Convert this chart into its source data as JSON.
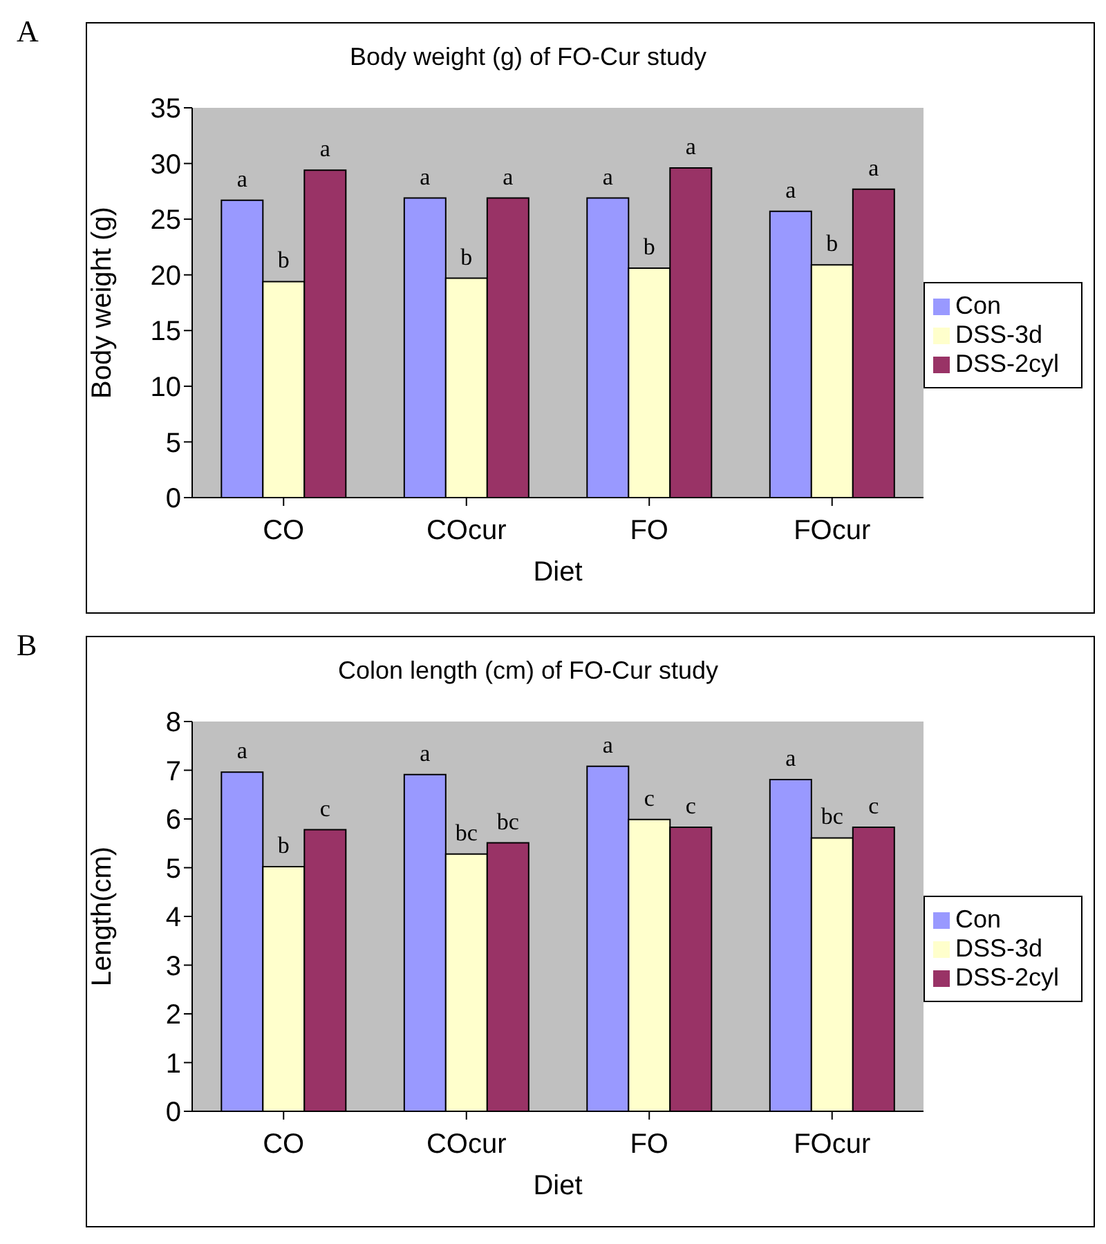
{
  "chart_data": [
    {
      "type": "bar",
      "title": "Body weight (g) of FO-Cur study",
      "xlabel": "Diet",
      "ylabel": "Body weight (g)",
      "annotations": [
        "A"
      ],
      "categories": [
        "CO",
        "COcur",
        "FO",
        "FOcur"
      ],
      "series": [
        {
          "name": "Con",
          "color": "#9999ff",
          "values": [
            26.7,
            26.9,
            26.9,
            25.7
          ],
          "value_labels": [
            "a",
            "a",
            "a",
            "a"
          ]
        },
        {
          "name": "DSS-3d",
          "color": "#ffffcc",
          "values": [
            19.4,
            19.7,
            20.6,
            20.9
          ],
          "value_labels": [
            "b",
            "b",
            "b",
            "b"
          ]
        },
        {
          "name": "DSS-2cyl",
          "color": "#993366",
          "values": [
            29.4,
            26.9,
            29.6,
            27.7
          ],
          "value_labels": [
            "a",
            "a",
            "a",
            "a"
          ]
        }
      ],
      "ylim": [
        0,
        35
      ],
      "yticks": [
        0,
        5,
        10,
        15,
        20,
        25,
        30,
        35
      ],
      "grid": false,
      "legend": "right"
    },
    {
      "type": "bar",
      "title": "Colon length (cm) of FO-Cur study",
      "xlabel": "Diet",
      "ylabel": "Length(cm)",
      "annotations": [
        "B"
      ],
      "categories": [
        "CO",
        "COcur",
        "FO",
        "FOcur"
      ],
      "series": [
        {
          "name": "Con",
          "color": "#9999ff",
          "values": [
            6.96,
            6.91,
            7.08,
            6.81
          ],
          "value_labels": [
            "a",
            "a",
            "a",
            "a"
          ]
        },
        {
          "name": "DSS-3d",
          "color": "#ffffcc",
          "values": [
            5.02,
            5.28,
            5.99,
            5.61
          ],
          "value_labels": [
            "b",
            "bc",
            "c",
            "bc"
          ]
        },
        {
          "name": "DSS-2cyl",
          "color": "#993366",
          "values": [
            5.78,
            5.51,
            5.83,
            5.83
          ],
          "value_labels": [
            "c",
            "bc",
            "c",
            "c"
          ]
        }
      ],
      "ylim": [
        0,
        8
      ],
      "yticks": [
        0,
        1,
        2,
        3,
        4,
        5,
        6,
        7,
        8
      ],
      "grid": false,
      "legend": "right"
    }
  ]
}
